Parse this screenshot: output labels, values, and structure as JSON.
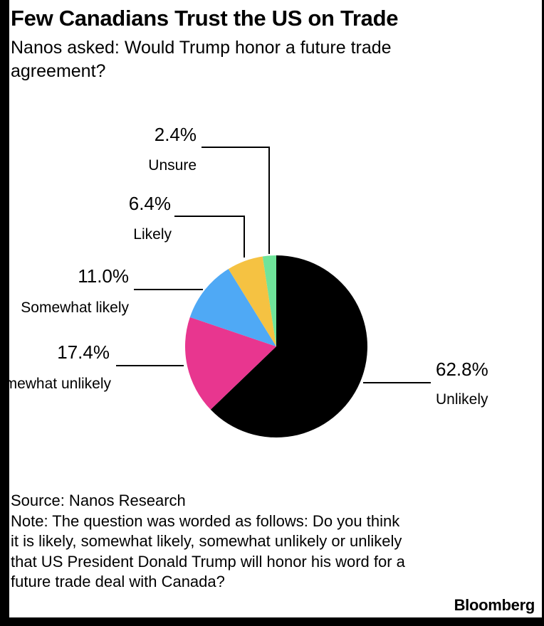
{
  "title": "Few Canadians Trust the US on Trade",
  "subtitle": "Nanos asked: Would Trump honor a future trade agreement?",
  "source": "Source: Nanos Research",
  "note": "Note: The question was worded as follows: Do you think it is likely, somewhat likely, somewhat unlikely or unlikely that US President Donald Trump will honor his word for a future trade deal with Canada?",
  "brand": "Bloomberg",
  "chart_data": {
    "type": "pie",
    "title": "Few Canadians Trust the US on Trade",
    "slices": [
      {
        "label": "Unlikely",
        "value": 62.8,
        "display": "62.8%",
        "color": "#000000"
      },
      {
        "label": "Somewhat unlikely",
        "value": 17.4,
        "display": "17.4%",
        "color": "#e8368f"
      },
      {
        "label": "Somewhat likely",
        "value": 11.0,
        "display": "11.0%",
        "color": "#4fa9f5"
      },
      {
        "label": "Likely",
        "value": 6.4,
        "display": "6.4%",
        "color": "#f5c242"
      },
      {
        "label": "Unsure",
        "value": 2.4,
        "display": "2.4%",
        "color": "#6fe49a"
      }
    ]
  }
}
